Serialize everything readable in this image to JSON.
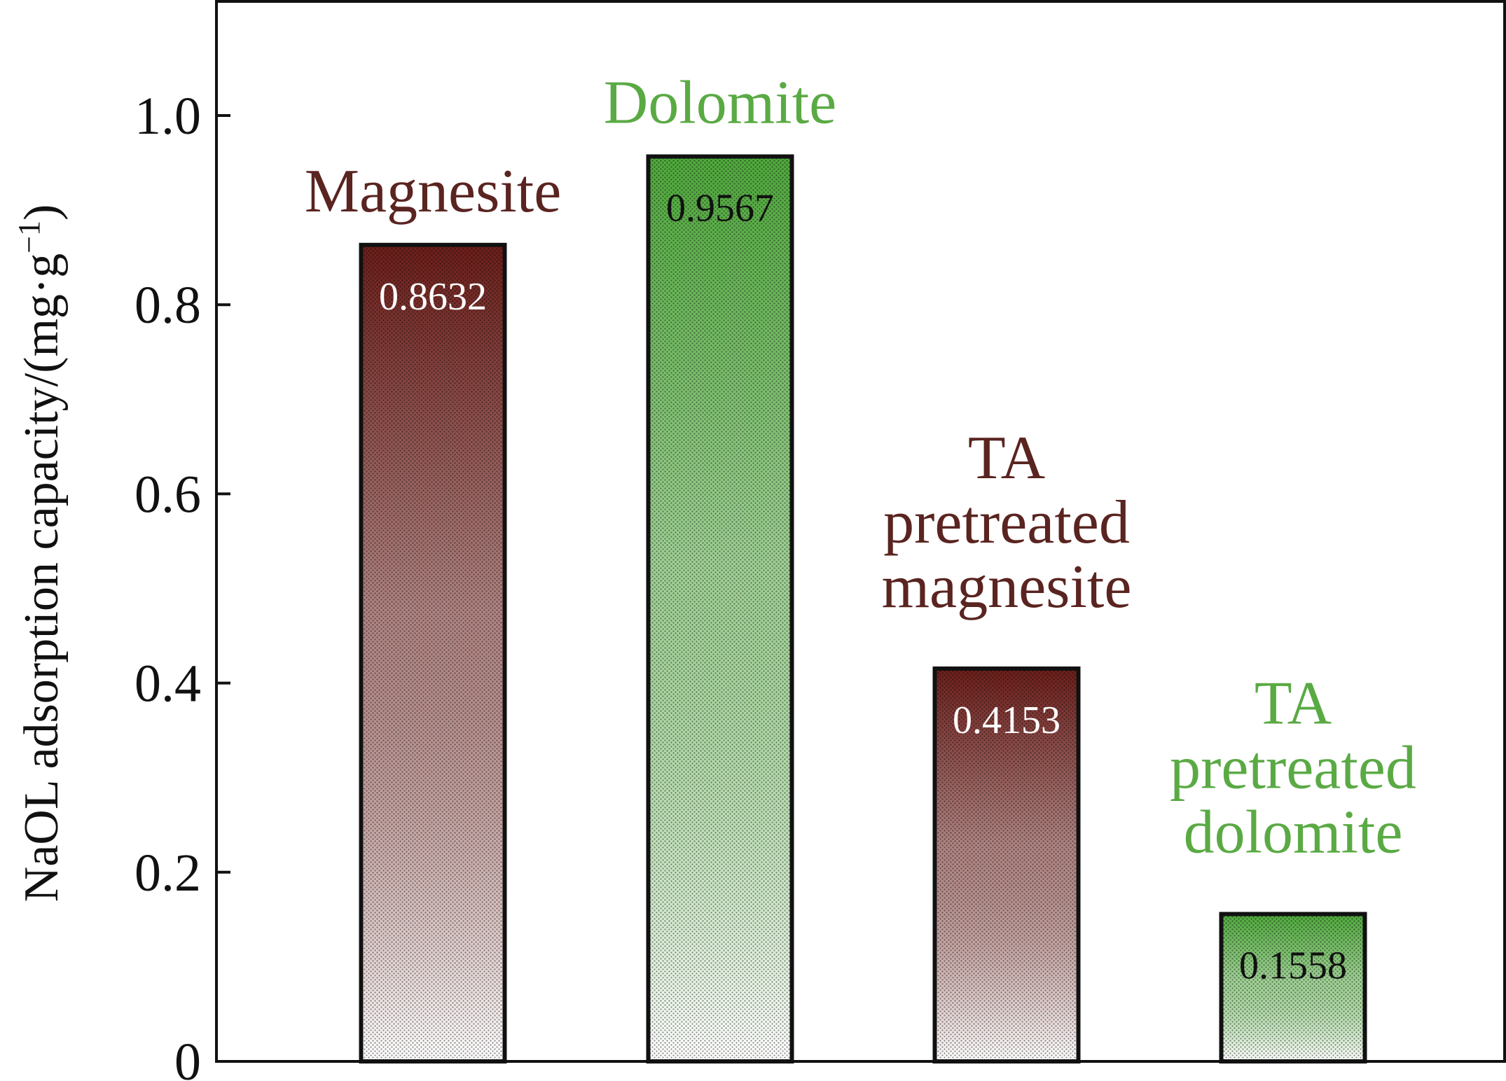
{
  "chart_data": {
    "type": "bar",
    "ylabel": "NaOL adsorption capacity/(mg·g",
    "ylabel_superscript": "−1",
    "ylabel_close": ")",
    "ylim": [
      0,
      1.1
    ],
    "yticks": [
      0,
      0.2,
      0.4,
      0.6,
      0.8,
      1.0
    ],
    "ytick_labels": [
      "0",
      "0.2",
      "0.4",
      "0.6",
      "0.8",
      "1.0"
    ],
    "grid": false,
    "legend": "none",
    "bars": [
      {
        "category": "Magnesite",
        "value": 0.8632,
        "label": "0.8632",
        "color": "#6b1e1a",
        "label_color": "#ffffff",
        "text_color": "#5a2420",
        "category_lines": [
          "Magnesite"
        ]
      },
      {
        "category": "Dolomite",
        "value": 0.9567,
        "label": "0.9567",
        "color": "#4fa83c",
        "label_color": "#111111",
        "text_color": "#5aaa44",
        "category_lines": [
          "Dolomite"
        ]
      },
      {
        "category": "TA pretreated magnesite",
        "value": 0.4153,
        "label": "0.4153",
        "color": "#6b1e1a",
        "label_color": "#ffffff",
        "text_color": "#5a2420",
        "category_lines": [
          "TA",
          "pretreated",
          "magnesite"
        ]
      },
      {
        "category": "TA pretreated dolomite",
        "value": 0.1558,
        "label": "0.1558",
        "color": "#4fa83c",
        "label_color": "#111111",
        "text_color": "#5aaa44",
        "category_lines": [
          "TA",
          "pretreated",
          "dolomite"
        ]
      }
    ]
  }
}
